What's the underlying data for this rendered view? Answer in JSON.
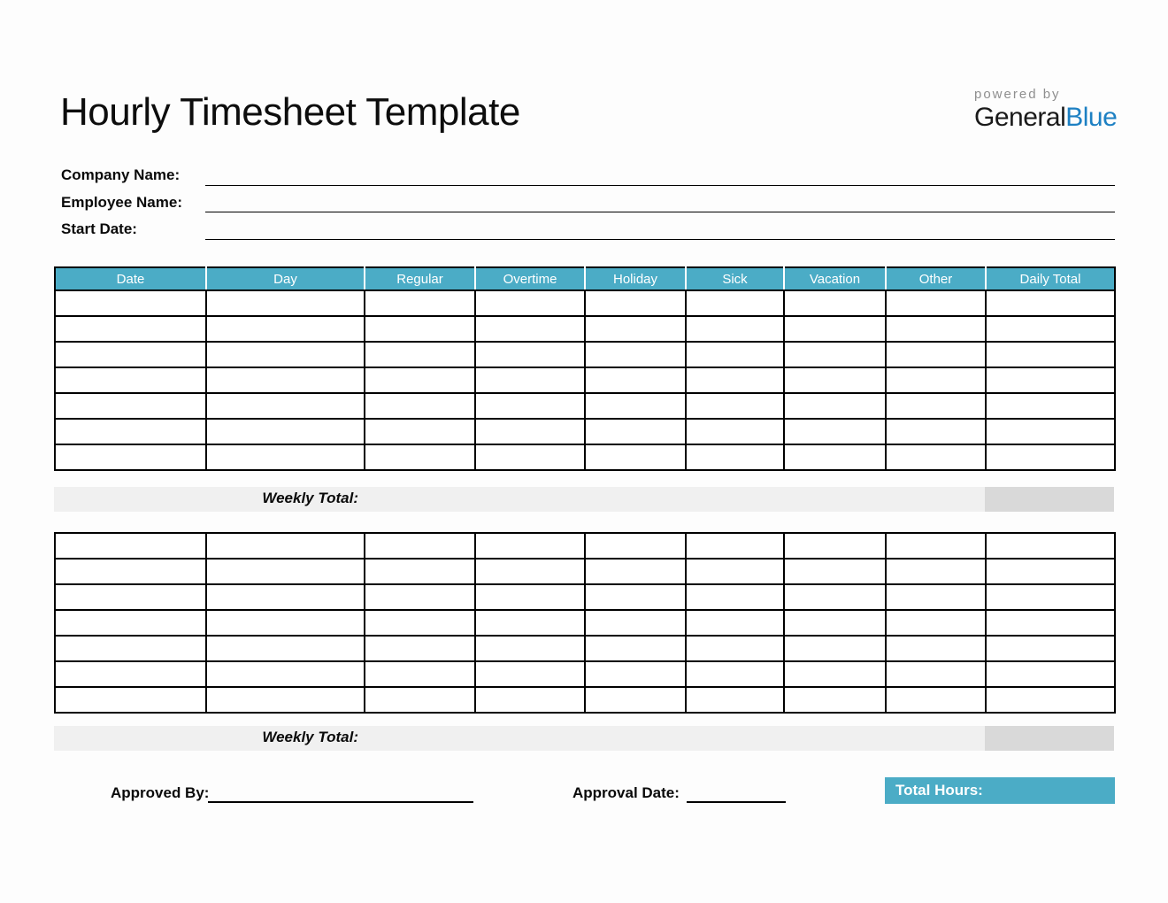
{
  "page": {
    "title": "Hourly Timesheet Template"
  },
  "logo": {
    "powered_by": "powered by",
    "brand_dark": "General",
    "brand_blue": "Blue"
  },
  "form": {
    "fields": [
      {
        "label": "Company Name:",
        "value": ""
      },
      {
        "label": "Employee Name:",
        "value": ""
      },
      {
        "label": "Start Date:",
        "value": ""
      }
    ]
  },
  "timesheet": {
    "columns": [
      "Date",
      "Day",
      "Regular",
      "Overtime",
      "Holiday",
      "Sick",
      "Vacation",
      "Other",
      "Daily Total"
    ],
    "weeks": [
      {
        "rows": [
          [
            "",
            "",
            "",
            "",
            "",
            "",
            "",
            "",
            ""
          ],
          [
            "",
            "",
            "",
            "",
            "",
            "",
            "",
            "",
            ""
          ],
          [
            "",
            "",
            "",
            "",
            "",
            "",
            "",
            "",
            ""
          ],
          [
            "",
            "",
            "",
            "",
            "",
            "",
            "",
            "",
            ""
          ],
          [
            "",
            "",
            "",
            "",
            "",
            "",
            "",
            "",
            ""
          ],
          [
            "",
            "",
            "",
            "",
            "",
            "",
            "",
            "",
            ""
          ],
          [
            "",
            "",
            "",
            "",
            "",
            "",
            "",
            "",
            ""
          ]
        ],
        "weekly_total_label": "Weekly Total:",
        "weekly_total_value": ""
      },
      {
        "rows": [
          [
            "",
            "",
            "",
            "",
            "",
            "",
            "",
            "",
            ""
          ],
          [
            "",
            "",
            "",
            "",
            "",
            "",
            "",
            "",
            ""
          ],
          [
            "",
            "",
            "",
            "",
            "",
            "",
            "",
            "",
            ""
          ],
          [
            "",
            "",
            "",
            "",
            "",
            "",
            "",
            "",
            ""
          ],
          [
            "",
            "",
            "",
            "",
            "",
            "",
            "",
            "",
            ""
          ],
          [
            "",
            "",
            "",
            "",
            "",
            "",
            "",
            "",
            ""
          ],
          [
            "",
            "",
            "",
            "",
            "",
            "",
            "",
            "",
            ""
          ]
        ],
        "weekly_total_label": "Weekly Total:",
        "weekly_total_value": ""
      }
    ]
  },
  "footer": {
    "approved_by_label": "Approved By:",
    "approved_by_value": "",
    "approval_date_label": "Approval Date:",
    "approval_date_value": "",
    "total_hours_label": "Total Hours:",
    "total_hours_value": ""
  },
  "colors": {
    "accent_teal": "#4BACC6",
    "brand_blue": "#1D80C3",
    "band_light": "#F0F0F0",
    "band_dark": "#D9D9D9"
  }
}
